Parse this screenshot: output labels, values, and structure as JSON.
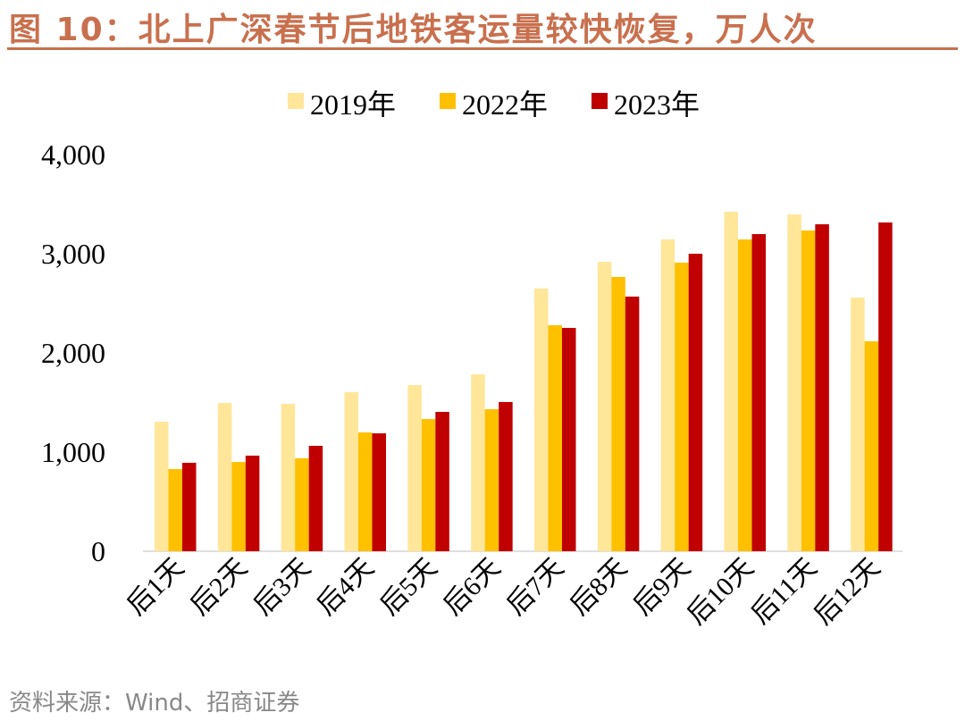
{
  "title": "图 10：北上广深春节后地铁客运量较快恢复，万人次",
  "source": "资料来源：Wind、招商证券",
  "chart_data": {
    "type": "bar",
    "categories": [
      "后1天",
      "后2天",
      "后3天",
      "后4天",
      "后5天",
      "后6天",
      "后7天",
      "后8天",
      "后9天",
      "后10天",
      "后11天",
      "后12天"
    ],
    "series": [
      {
        "name": "2019年",
        "color": "#FFE699",
        "values": [
          1306,
          1495,
          1486,
          1604,
          1676,
          1784,
          2649,
          2919,
          3144,
          3423,
          3396,
          2558
        ]
      },
      {
        "name": "2022年",
        "color": "#FFC000",
        "values": [
          829,
          900,
          937,
          1198,
          1333,
          1432,
          2279,
          2766,
          2910,
          3144,
          3234,
          2117
        ]
      },
      {
        "name": "2023年",
        "color": "#C00000",
        "values": [
          892,
          964,
          1063,
          1189,
          1405,
          1505,
          2252,
          2568,
          3000,
          3198,
          3297,
          3315
        ]
      }
    ],
    "ylim": [
      0,
      4000
    ],
    "yticks": [
      "0",
      "1,000",
      "2,000",
      "3,000",
      "4,000"
    ],
    "legend": "top",
    "grid": false
  }
}
